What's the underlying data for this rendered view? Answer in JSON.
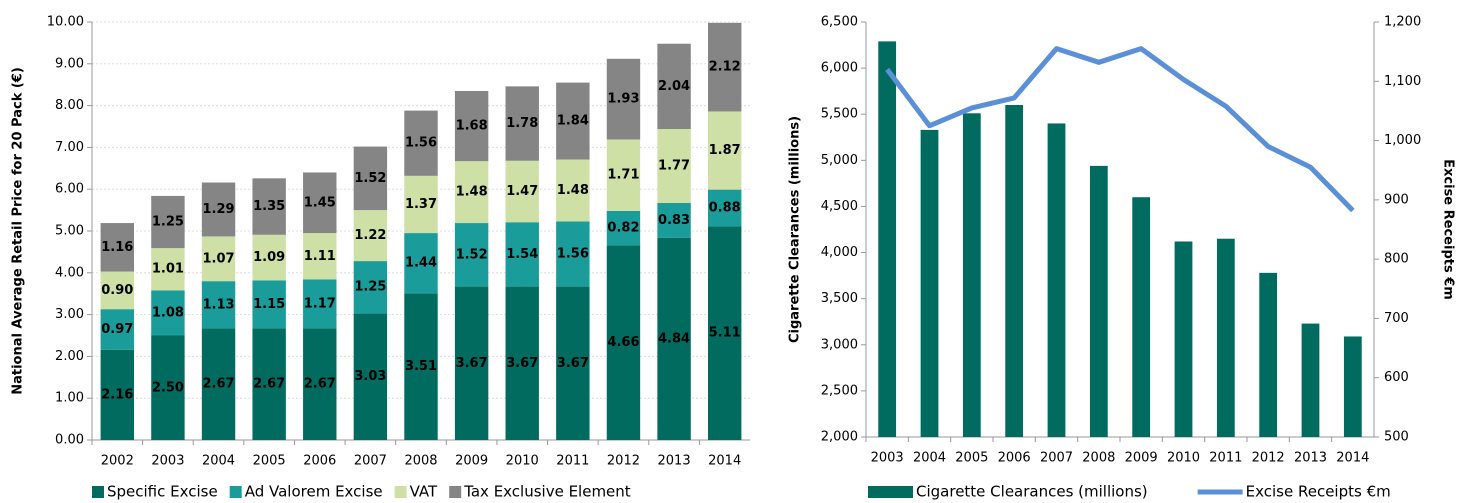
{
  "chart_data": [
    {
      "type": "bar",
      "stacked": true,
      "grid": true,
      "legend": "bottom",
      "y_label": "National Average Retail Price for 20 Pack (€)",
      "categories": [
        "2002",
        "2003",
        "2004",
        "2005",
        "2006",
        "2007",
        "2008",
        "2009",
        "2010",
        "2011",
        "2012",
        "2013",
        "2014"
      ],
      "ylim": [
        0,
        10
      ],
      "yticks": [
        {
          "value": 0,
          "label": "0.00"
        },
        {
          "value": 1,
          "label": "1.00"
        },
        {
          "value": 2,
          "label": "2.00"
        },
        {
          "value": 3,
          "label": "3.00"
        },
        {
          "value": 4,
          "label": "4.00"
        },
        {
          "value": 5,
          "label": "5.00"
        },
        {
          "value": 6,
          "label": "6.00"
        },
        {
          "value": 7,
          "label": "7.00"
        },
        {
          "value": 8,
          "label": "8.00"
        },
        {
          "value": 9,
          "label": "9.00"
        },
        {
          "value": 10,
          "label": "10.00"
        }
      ],
      "series": [
        {
          "name": "Specific Excise",
          "color": "#006b5e",
          "values": [
            2.16,
            2.5,
            2.67,
            2.67,
            2.67,
            3.03,
            3.51,
            3.67,
            3.67,
            3.67,
            4.66,
            4.84,
            5.11
          ],
          "value_labels": [
            "2.16",
            "2.50",
            "2.67",
            "2.67",
            "2.67",
            "3.03",
            "3.51",
            "3.67",
            "3.67",
            "3.67",
            "4.66",
            "4.84",
            "5.11"
          ]
        },
        {
          "name": "Ad Valorem Excise",
          "color": "#1a9c9a",
          "values": [
            0.97,
            1.08,
            1.13,
            1.15,
            1.17,
            1.25,
            1.44,
            1.52,
            1.54,
            1.56,
            0.82,
            0.83,
            0.88
          ],
          "value_labels": [
            "0.97",
            "1.08",
            "1.13",
            "1.15",
            "1.17",
            "1.25",
            "1.44",
            "1.52",
            "1.54",
            "1.56",
            "0.82",
            "0.83",
            "0.88"
          ]
        },
        {
          "name": "VAT",
          "color": "#cfe0a6",
          "values": [
            0.9,
            1.01,
            1.07,
            1.09,
            1.11,
            1.22,
            1.37,
            1.48,
            1.47,
            1.48,
            1.71,
            1.77,
            1.87
          ],
          "value_labels": [
            "0.90",
            "1.01",
            "1.07",
            "1.09",
            "1.11",
            "1.22",
            "1.37",
            "1.48",
            "1.47",
            "1.48",
            "1.71",
            "1.77",
            "1.87"
          ]
        },
        {
          "name": "Tax Exclusive Element",
          "color": "#858585",
          "values": [
            1.16,
            1.25,
            1.29,
            1.35,
            1.45,
            1.52,
            1.56,
            1.68,
            1.78,
            1.84,
            1.93,
            2.04,
            2.12
          ],
          "value_labels": [
            "1.16",
            "1.25",
            "1.29",
            "1.35",
            "1.45",
            "1.52",
            "1.56",
            "1.68",
            "1.78",
            "1.84",
            "1.93",
            "2.04",
            "2.12"
          ]
        }
      ]
    },
    {
      "type": "combo",
      "grid": false,
      "legend": "bottom",
      "y_label": "Cigarette Clearances (millions)",
      "y2_label": "Excise Receipts €m",
      "categories": [
        "2003",
        "2004",
        "2005",
        "2006",
        "2007",
        "2008",
        "2009",
        "2010",
        "2011",
        "2012",
        "2013",
        "2014"
      ],
      "ylim": [
        2000,
        6500
      ],
      "yticks": [
        {
          "value": 2000,
          "label": "2,000"
        },
        {
          "value": 2500,
          "label": "2,500"
        },
        {
          "value": 3000,
          "label": "3,000"
        },
        {
          "value": 3500,
          "label": "3,500"
        },
        {
          "value": 4000,
          "label": "4,000"
        },
        {
          "value": 4500,
          "label": "4,500"
        },
        {
          "value": 5000,
          "label": "5,000"
        },
        {
          "value": 5500,
          "label": "5,500"
        },
        {
          "value": 6000,
          "label": "6,000"
        },
        {
          "value": 6500,
          "label": "6,500"
        }
      ],
      "y2lim": [
        500,
        1200
      ],
      "y2ticks": [
        500,
        600,
        700,
        800,
        900,
        {
          "value": 1000,
          "label": "1,000"
        },
        {
          "value": 1100,
          "label": "1,100"
        },
        {
          "value": 1200,
          "label": "1,200"
        }
      ],
      "series": [
        {
          "name": "Cigarette Clearances (millions)",
          "type": "bar",
          "color": "#006b5e",
          "values": [
            6290,
            5330,
            5510,
            5600,
            5400,
            4940,
            4600,
            4120,
            4150,
            3780,
            3230,
            3090
          ]
        },
        {
          "name": "Excise Receipts €m",
          "type": "line",
          "axis": "y2",
          "color": "#5b8fd8",
          "values": [
            1120,
            1025,
            1055,
            1072,
            1155,
            1132,
            1155,
            1103,
            1058,
            990,
            955,
            882
          ]
        }
      ]
    }
  ]
}
